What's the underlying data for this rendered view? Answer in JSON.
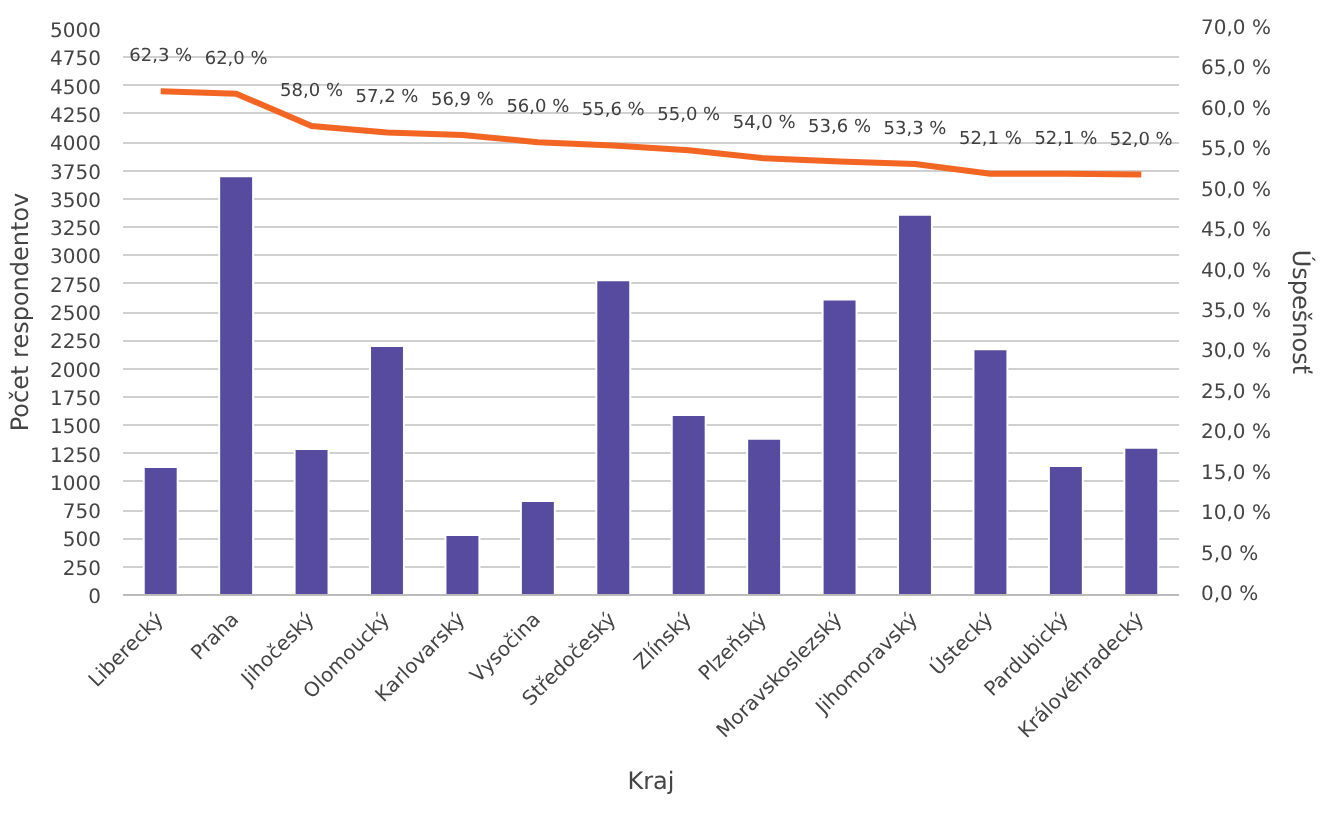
{
  "chart_data": {
    "type": "bar",
    "xlabel": "Kraj",
    "ylabel": "Počet respondentov",
    "y2label": "Úspešnosť",
    "categories": [
      "Liberecký",
      "Praha",
      "Jihočeský",
      "Olomoucký",
      "Karlovarský",
      "Vysočina",
      "Středočeský",
      "Zlínský",
      "Plzeňský",
      "Moravskoslezský",
      "Jihomoravský",
      "Ústecký",
      "Pardubický",
      "Královéhradecký"
    ],
    "series": [
      {
        "color": "#574b9f",
        "values": [
          1130,
          3700,
          1290,
          2200,
          530,
          830,
          2780,
          1590,
          1380,
          2610,
          3360,
          2170,
          1140,
          1300
        ]
      },
      {
        "type": "line",
        "axis": "y2",
        "color": "#f26522",
        "values": [
          62.3,
          62.0,
          58.0,
          57.2,
          56.9,
          56.0,
          55.6,
          55.0,
          54.0,
          53.6,
          53.3,
          52.1,
          52.1,
          52.0
        ],
        "value_labels": [
          "62,3 %",
          "62,0 %",
          "58,0 %",
          "57,2 %",
          "56,9 %",
          "56,0 %",
          "55,6 %",
          "55,0 %",
          "54,0 %",
          "53,6 %",
          "53,3 %",
          "52,1 %",
          "52,1 %",
          "52,0 %"
        ]
      }
    ],
    "ylim": [
      0,
      5000
    ],
    "yticks": [
      0,
      250,
      500,
      750,
      1000,
      1250,
      1500,
      1750,
      2000,
      2250,
      2500,
      2750,
      3000,
      3250,
      3500,
      3750,
      4000,
      4250,
      4500,
      4750,
      5000
    ],
    "y2lim": [
      0,
      70
    ],
    "y2ticks": [
      {
        "value": 0,
        "label": "0,0 %"
      },
      {
        "value": 5,
        "label": "5,0 %"
      },
      {
        "value": 10,
        "label": "10,0 %"
      },
      {
        "value": 15,
        "label": "15,0 %"
      },
      {
        "value": 20,
        "label": "20,0 %"
      },
      {
        "value": 25,
        "label": "25,0 %"
      },
      {
        "value": 30,
        "label": "30,0 %"
      },
      {
        "value": 35,
        "label": "35,0 %"
      },
      {
        "value": 40,
        "label": "40,0 %"
      },
      {
        "value": 45,
        "label": "45,0 %"
      },
      {
        "value": 50,
        "label": "50,0 %"
      },
      {
        "value": 55,
        "label": "55,0 %"
      },
      {
        "value": 60,
        "label": "60,0 %"
      },
      {
        "value": 65,
        "label": "65,0 %"
      },
      {
        "value": 70,
        "label": "70,0 %"
      }
    ],
    "grid": "y"
  }
}
